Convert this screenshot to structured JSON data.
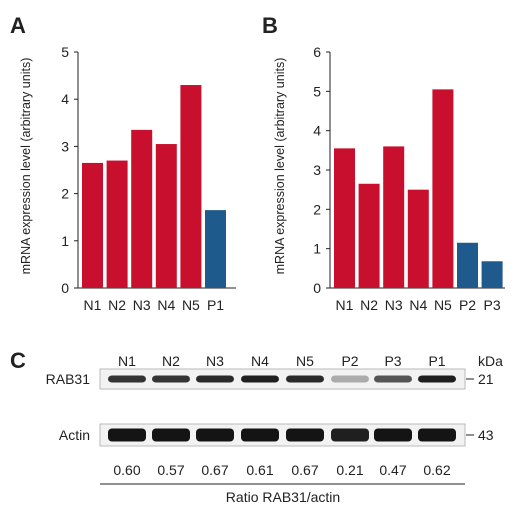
{
  "panels": [
    {
      "letter": "A",
      "ylabel": "mRNA expression level (arbitrary units)",
      "ylim": [
        0,
        5
      ],
      "yticks": [
        0,
        1,
        2,
        3,
        4,
        5
      ]
    },
    {
      "letter": "B",
      "ylabel": "mRNA expression level (arbitrary units)",
      "ylim": [
        0,
        6
      ],
      "yticks": [
        0,
        1,
        2,
        3,
        4,
        5,
        6
      ]
    }
  ],
  "colors": {
    "normal": "#C8102E",
    "patient": "#1F5A8C"
  },
  "chart_data": [
    {
      "type": "bar",
      "panel": "A",
      "categories": [
        "N1",
        "N2",
        "N3",
        "N4",
        "N5",
        "P1"
      ],
      "values": [
        2.65,
        2.7,
        3.35,
        3.05,
        4.3,
        1.65
      ],
      "groups": [
        "normal",
        "normal",
        "normal",
        "normal",
        "normal",
        "patient"
      ],
      "xlabel": "",
      "ylabel": "mRNA expression level (arbitrary units)",
      "ylim": [
        0,
        5
      ],
      "grid": false
    },
    {
      "type": "bar",
      "panel": "B",
      "categories": [
        "N1",
        "N2",
        "N3",
        "N4",
        "N5",
        "P2",
        "P3"
      ],
      "values": [
        3.55,
        2.65,
        3.6,
        2.5,
        5.05,
        1.15,
        0.68
      ],
      "groups": [
        "normal",
        "normal",
        "normal",
        "normal",
        "normal",
        "patient",
        "patient"
      ],
      "xlabel": "",
      "ylabel": "mRNA expression level (arbitrary units)",
      "ylim": [
        0,
        6
      ],
      "grid": false
    }
  ],
  "blot": {
    "letter": "C",
    "lanes": [
      "N1",
      "N2",
      "N3",
      "N4",
      "N5",
      "P2",
      "P3",
      "P1"
    ],
    "kda_label": "kDa",
    "rows": [
      {
        "label": "RAB31",
        "kda": "21",
        "intensity": [
          0.85,
          0.85,
          0.9,
          0.95,
          0.9,
          0.3,
          0.7,
          0.95
        ]
      },
      {
        "label": "Actin",
        "kda": "43",
        "intensity": [
          1,
          1,
          1,
          1,
          1,
          0.95,
          1,
          1
        ]
      }
    ],
    "ratios": [
      "0.60",
      "0.57",
      "0.67",
      "0.61",
      "0.67",
      "0.21",
      "0.47",
      "0.62"
    ],
    "ratio_label": "Ratio RAB31/actin"
  }
}
